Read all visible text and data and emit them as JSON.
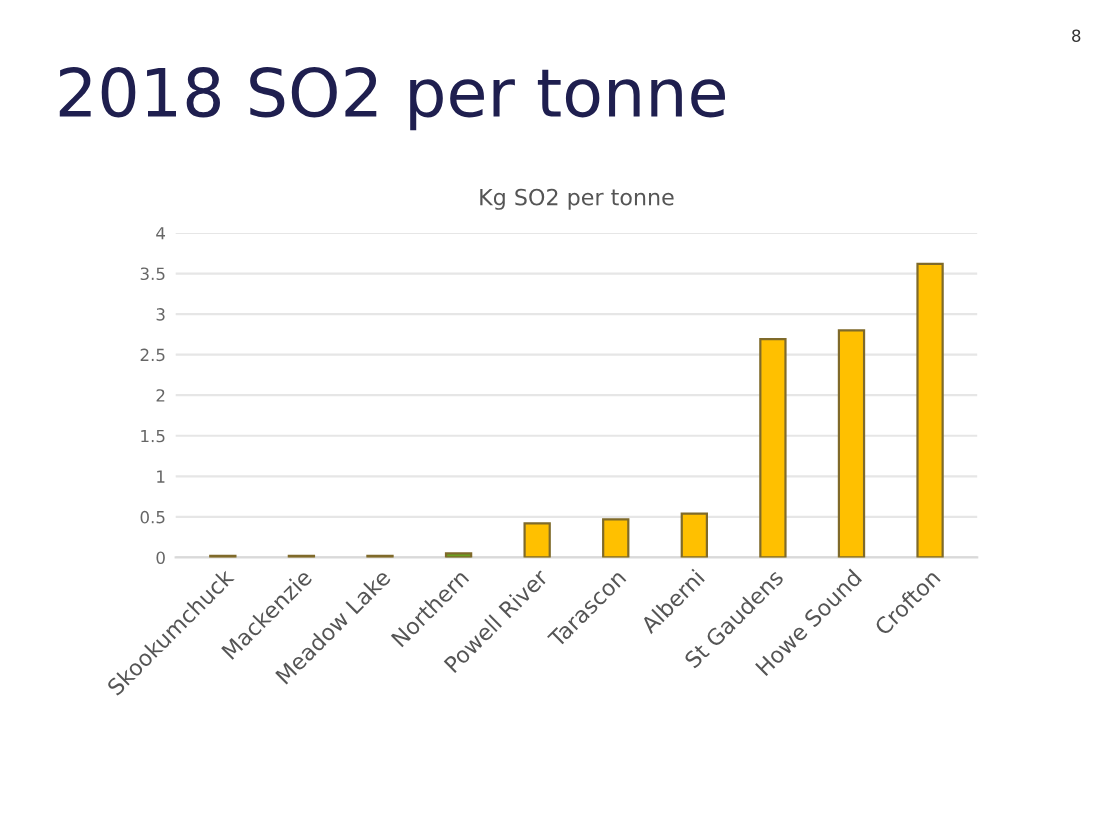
{
  "chart_data": {
    "type": "bar",
    "title": "2018 SO2 per tonne",
    "subtitle": "Kg SO2 per tonne",
    "categories": [
      "Skookumchuck",
      "Mackenzie",
      "Meadow Lake",
      "Northern",
      "Powell River",
      "Tarascon",
      "Alberni",
      "St Gaudens",
      "Howe Sound",
      "Crofton"
    ],
    "values": [
      0.02,
      0.02,
      0.02,
      0.05,
      0.42,
      0.47,
      0.54,
      2.69,
      2.8,
      3.62
    ],
    "colors": [
      "#d9b36a",
      "#d9b36a",
      "#d9b36a",
      "#6aa121",
      "#ffc000",
      "#ffc000",
      "#ffc000",
      "#ffc000",
      "#ffc000",
      "#ffc000"
    ],
    "ylim": [
      0,
      4
    ],
    "yticks": [
      0,
      0.5,
      1,
      1.5,
      2,
      2.5,
      3,
      3.5,
      4
    ],
    "grid": "y",
    "legend": false,
    "annotations": [
      "8"
    ]
  }
}
